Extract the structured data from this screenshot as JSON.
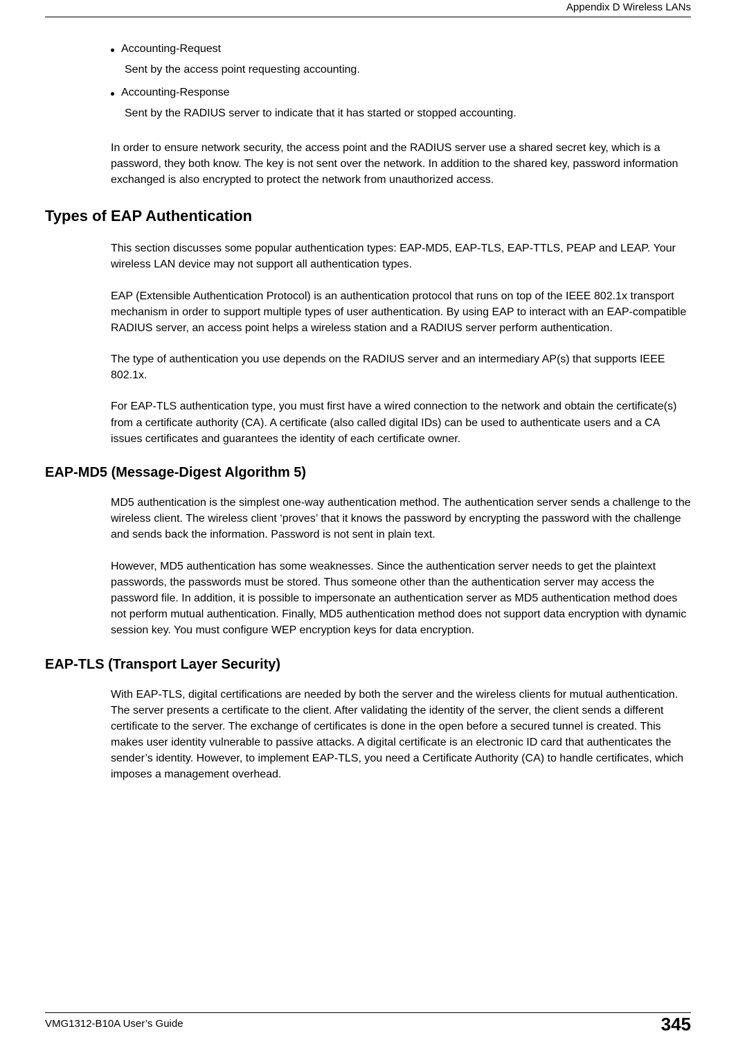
{
  "header": {
    "title": "Appendix D Wireless LANs"
  },
  "bullets": [
    {
      "term": "Accounting-Request",
      "desc": "Sent by the access point requesting accounting."
    },
    {
      "term": "Accounting-Response",
      "desc": "Sent by the RADIUS server to indicate that it has started or stopped accounting."
    }
  ],
  "para_intro": "In order to ensure network security, the access point and the RADIUS server use a shared secret key, which is a password, they both know. The key is not sent over the network. In addition to the shared key, password information exchanged is also encrypted to protect the network from unauthorized access.",
  "section1": {
    "title": "Types of EAP Authentication",
    "p1": "This section discusses some popular authentication types: EAP-MD5, EAP-TLS, EAP-TTLS, PEAP and LEAP. Your wireless LAN device may not support all authentication types.",
    "p2": "EAP (Extensible Authentication Protocol) is an authentication protocol that runs on top of the IEEE 802.1x transport mechanism in order to support multiple types of user authentication. By using EAP to interact with an EAP-compatible RADIUS server, an access point helps a wireless station and a RADIUS server perform authentication.",
    "p3": "The type of authentication you use depends on the RADIUS server and an intermediary AP(s) that supports IEEE 802.1x.",
    "p4": "For EAP-TLS authentication type, you must first have a wired connection to the network and obtain the certificate(s) from a certificate authority (CA). A certificate (also called digital IDs) can be used to authenticate users and a CA issues certificates and guarantees the identity of each certificate owner."
  },
  "section2": {
    "title": "EAP-MD5 (Message-Digest Algorithm 5)",
    "p1": "MD5 authentication is the simplest one-way authentication method. The authentication server sends a challenge to the wireless client. The wireless client ‘proves’ that it knows the password by encrypting the password with the challenge and sends back the information. Password is not sent in plain text.",
    "p2": "However, MD5 authentication has some weaknesses. Since the authentication server needs to get the plaintext passwords, the passwords must be stored. Thus someone other than the authentication server may access the password file. In addition, it is possible to impersonate an authentication server as MD5 authentication method does not perform mutual authentication. Finally, MD5 authentication method does not support data encryption with dynamic session key. You must configure WEP encryption keys for data encryption."
  },
  "section3": {
    "title": "EAP-TLS (Transport Layer Security)",
    "p1": "With EAP-TLS, digital certifications are needed by both the server and the wireless clients for mutual authentication. The server presents a certificate to the client. After validating the identity of the server, the client sends a different certificate to the server. The exchange of certificates is done in the open before a secured tunnel is created. This makes user identity vulnerable to passive attacks. A digital certificate is an electronic ID card that authenticates the sender’s identity. However, to implement EAP-TLS, you need a Certificate Authority (CA) to handle certificates, which imposes a management overhead."
  },
  "footer": {
    "guide": "VMG1312-B10A User’s Guide",
    "page": "345"
  }
}
